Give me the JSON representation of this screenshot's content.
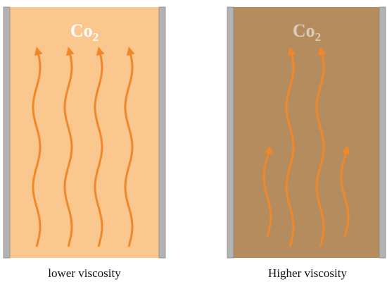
{
  "panels": [
    {
      "label": {
        "main": "Co",
        "sub": "2"
      },
      "caption": "lower viscosity"
    },
    {
      "label": {
        "main": "Co",
        "sub": "2"
      },
      "caption": "Higher viscosity"
    }
  ]
}
